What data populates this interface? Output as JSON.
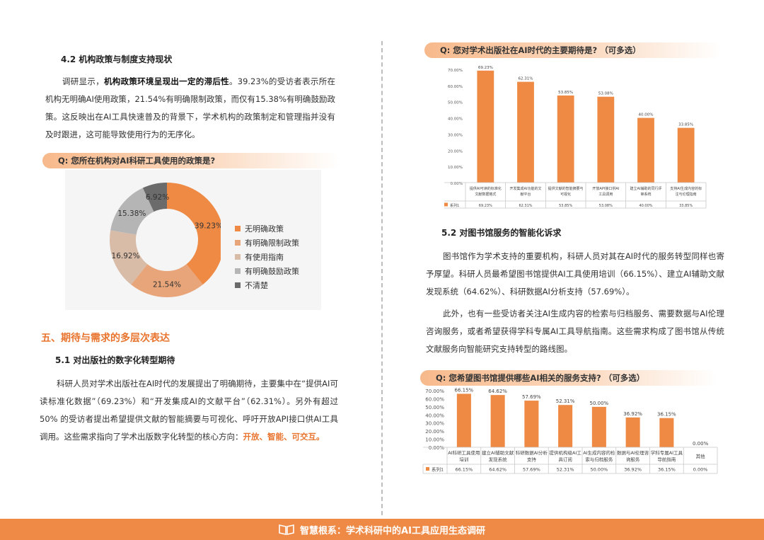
{
  "left": {
    "section_42": {
      "title": "4.2 机构政策与制度支持现状",
      "para_pre": "调研显示，",
      "para_bold": "机构政策环境呈现出一定的滞后性",
      "para_rest": "。39.23%的受访者表示所在机构无明确AI使用政策，21.54%有明确限制政策，而仅有15.38%有明确鼓励政策。这反映出在AI工具快速普及的背景下，学术机构的政策制定和管理指并没有及时跟进，这可能导致使用行为的无序化。"
    },
    "q1": "Q:  您所在机构对AI科研工具使用的政策是?",
    "section_5": "五、期待与需求的多层次表达",
    "section_51": {
      "title": "5.1 对出版社的数字化转型期待",
      "para": "科研人员对学术出版社在AI时代的发展提出了明确期待，主要集中在“提供AI可读标准化数据”（69.23%）和“开发集成AI的文献平台”（62.31%）。另外有超过50% 的受访者提出希望提供文献的智能摘要与可视化、呼吁开放API接口供AI工具调用。这些需求指向了学术出版数字化转型的核心方向：",
      "para_hl": "开放、智能、可交互。"
    }
  },
  "right": {
    "q2": "Q:  您对学术出版社在AI时代的主要期待是?  （可多选）",
    "section_52": {
      "title": "5.2 对图书馆服务的智能化诉求",
      "para1": "图书馆作为学术支持的重要机构，科研人员对其在AI时代的服务转型同样也寄予厚望。科研人员最希望图书馆提供AI工具使用培训（66.15%）、建立AI辅助文献发现系统（64.62%）、科研数据AI分析支持（57.69%）。",
      "para2": "此外，也有一些受访者关注AI生成内容的检索与归档服务、需要数据与AI伦理咨询服务，或者希望获得学科专属AI工具导航指南。这些需求构成了图书馆从传统文献服务向智能研究支持转型的路线图。"
    },
    "q3": "Q:  您希望图书馆提供哪些AI相关的服务支持?  （可多选）"
  },
  "footer": {
    "title": "智慧根系：学术科研中的AI工具应用生态调研"
  },
  "chart_data": [
    {
      "type": "pie",
      "categories": [
        "无明确政策",
        "有明确限制政策",
        "有使用指南",
        "有明确鼓励政策",
        "不清楚"
      ],
      "values": [
        39.23,
        21.54,
        16.92,
        15.38,
        6.92
      ],
      "labels": [
        "39.23%",
        "21.54%",
        "16.92%",
        "15.38%",
        "6.92%"
      ],
      "colors": [
        "#ef8a45",
        "#e8a57a",
        "#d9bca8",
        "#b5b5b5",
        "#6b6b6b"
      ],
      "legend": "right"
    },
    {
      "type": "bar",
      "categories": [
        "提供AI可读的标准化文献数据格式",
        "开发集成AI功能的文献平台",
        "提供文献的智能摘要与可视化",
        "开放API接口供AI工具调用",
        "建立AI辅助的同行评审系统",
        "支持AI生成内容的标注与伦理指南"
      ],
      "series": [
        {
          "name": "系列1",
          "values": [
            69.23,
            62.31,
            53.85,
            53.08,
            40.0,
            33.85
          ]
        }
      ],
      "data_labels": [
        "69.23%",
        "62.31%",
        "53.85%",
        "53.08%",
        "40.00%",
        "33.85%"
      ],
      "yticks": [
        "0.00%",
        "10.00%",
        "20.00%",
        "30.00%",
        "40.00%",
        "50.00%",
        "60.00%",
        "70.00%"
      ],
      "ylim": [
        0,
        70
      ],
      "bar_color": "#ef8a45",
      "grid": false,
      "table": true
    },
    {
      "type": "bar",
      "categories": [
        "AI科研工具使用培训",
        "建立AI辅助文献发现系统",
        "科研数据AI分析支持",
        "提供机构级AI工具订阅",
        "AI生成内容的检索与归档服务",
        "数据与AI伦理咨询服务",
        "学科专属AI工具导航指南",
        "其他"
      ],
      "series": [
        {
          "name": "系列1",
          "values": [
            66.15,
            64.62,
            57.69,
            52.31,
            50.0,
            36.92,
            36.15,
            0.0
          ]
        }
      ],
      "data_labels": [
        "66.15%",
        "64.62%",
        "57.69%",
        "52.31%",
        "50.00%",
        "36.92%",
        "36.15%",
        "0.00%"
      ],
      "yticks": [
        "0.00%",
        "10.00%",
        "20.00%",
        "30.00%",
        "40.00%",
        "50.00%",
        "60.00%",
        "70.00%"
      ],
      "ylim": [
        0,
        70
      ],
      "bar_color": "#ef8a45",
      "grid": false,
      "table": true
    }
  ]
}
